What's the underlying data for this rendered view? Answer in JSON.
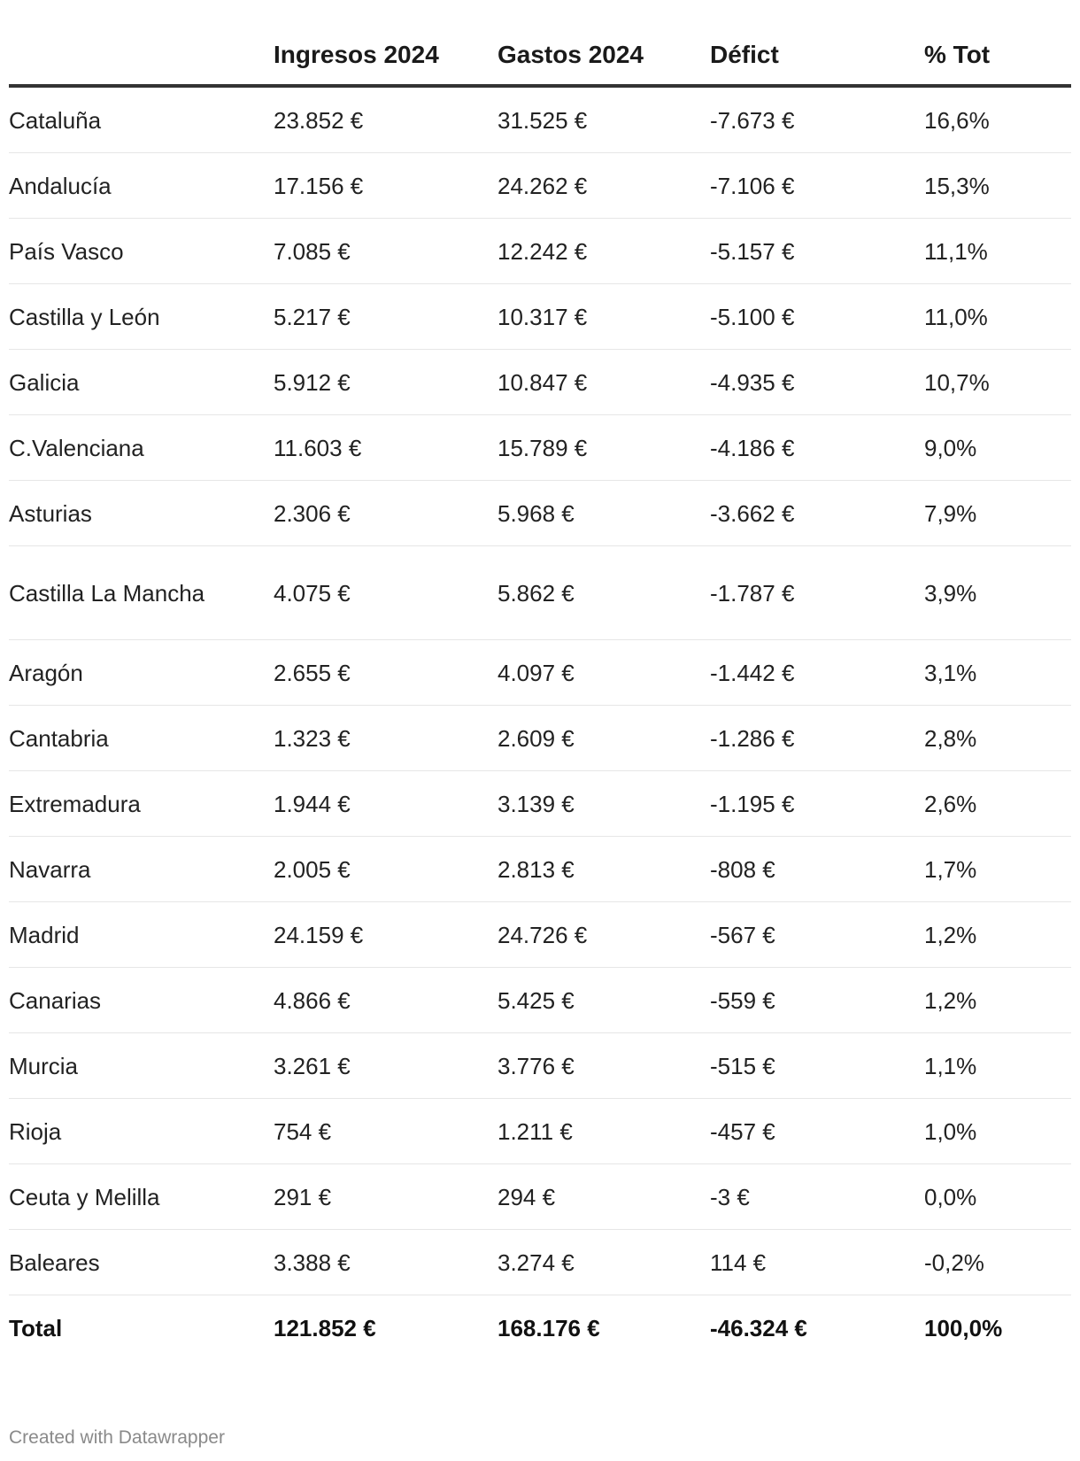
{
  "chart_data": {
    "type": "table",
    "columns": [
      "",
      "Ingresos 2024",
      "Gastos 2024",
      "Défict",
      "% Tot"
    ],
    "rows": [
      {
        "name": "Cataluña",
        "ingresos": "23.852 €",
        "gastos": "31.525 €",
        "deficit": "-7.673 €",
        "pct": "16,6%"
      },
      {
        "name": "Andalucía",
        "ingresos": "17.156 €",
        "gastos": "24.262 €",
        "deficit": "-7.106 €",
        "pct": "15,3%"
      },
      {
        "name": "País Vasco",
        "ingresos": "7.085 €",
        "gastos": "12.242 €",
        "deficit": "-5.157 €",
        "pct": "11,1%"
      },
      {
        "name": "Castilla y León",
        "ingresos": "5.217 €",
        "gastos": "10.317 €",
        "deficit": "-5.100 €",
        "pct": "11,0%"
      },
      {
        "name": "Galicia",
        "ingresos": "5.912 €",
        "gastos": "10.847 €",
        "deficit": "-4.935 €",
        "pct": "10,7%"
      },
      {
        "name": "C.Valenciana",
        "ingresos": "11.603 €",
        "gastos": "15.789 €",
        "deficit": "-4.186 €",
        "pct": "9,0%"
      },
      {
        "name": "Asturias",
        "ingresos": "2.306 €",
        "gastos": "5.968 €",
        "deficit": "-3.662 €",
        "pct": "7,9%"
      },
      {
        "name": "Castilla La Mancha",
        "ingresos": "4.075 €",
        "gastos": "5.862 €",
        "deficit": "-1.787 €",
        "pct": "3,9%"
      },
      {
        "name": "Aragón",
        "ingresos": "2.655 €",
        "gastos": "4.097 €",
        "deficit": "-1.442 €",
        "pct": "3,1%"
      },
      {
        "name": "Cantabria",
        "ingresos": "1.323 €",
        "gastos": "2.609 €",
        "deficit": "-1.286 €",
        "pct": "2,8%"
      },
      {
        "name": "Extremadura",
        "ingresos": "1.944 €",
        "gastos": "3.139 €",
        "deficit": "-1.195 €",
        "pct": "2,6%"
      },
      {
        "name": "Navarra",
        "ingresos": "2.005 €",
        "gastos": "2.813 €",
        "deficit": "-808 €",
        "pct": "1,7%"
      },
      {
        "name": "Madrid",
        "ingresos": "24.159 €",
        "gastos": "24.726 €",
        "deficit": "-567 €",
        "pct": "1,2%"
      },
      {
        "name": "Canarias",
        "ingresos": "4.866 €",
        "gastos": "5.425 €",
        "deficit": "-559 €",
        "pct": "1,2%"
      },
      {
        "name": "Murcia",
        "ingresos": "3.261 €",
        "gastos": "3.776 €",
        "deficit": "-515 €",
        "pct": "1,1%"
      },
      {
        "name": "Rioja",
        "ingresos": "754 €",
        "gastos": "1.211 €",
        "deficit": "-457 €",
        "pct": "1,0%"
      },
      {
        "name": "Ceuta y Melilla",
        "ingresos": "291 €",
        "gastos": "294 €",
        "deficit": "-3 €",
        "pct": "0,0%"
      },
      {
        "name": "Baleares",
        "ingresos": "3.388 €",
        "gastos": "3.274 €",
        "deficit": "114 €",
        "pct": "-0,2%"
      }
    ],
    "total": {
      "name": "Total",
      "ingresos": "121.852 €",
      "gastos": "168.176 €",
      "deficit": "-46.324 €",
      "pct": "100,0%"
    }
  },
  "footer": "Created with Datawrapper"
}
